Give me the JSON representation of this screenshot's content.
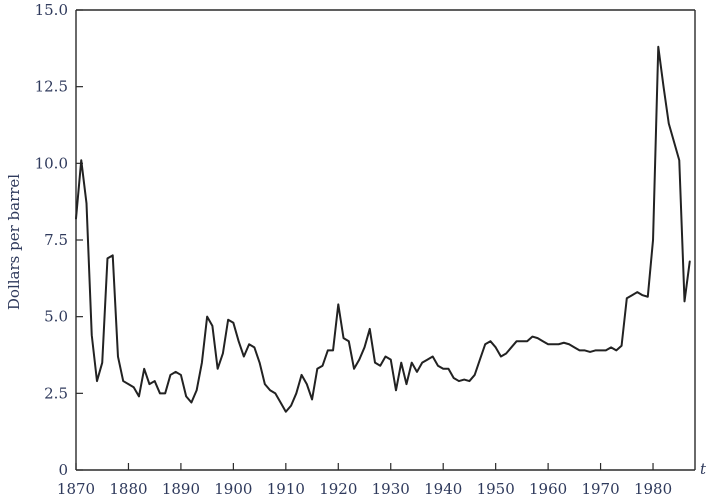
{
  "chart_data": {
    "type": "line",
    "title": "",
    "xlabel": "",
    "x_variable": "t",
    "ylabel": "Dollars per barrel",
    "xlim": [
      1870,
      1988
    ],
    "ylim": [
      0,
      15
    ],
    "grid": false,
    "x_ticks": [
      1870,
      1880,
      1890,
      1900,
      1910,
      1920,
      1930,
      1940,
      1950,
      1960,
      1970,
      1980
    ],
    "y_ticks": [
      0,
      2.5,
      5.0,
      7.5,
      10.0,
      12.5,
      15.0
    ],
    "x_tick_labels": [
      "1870",
      "1880",
      "1890",
      "1900",
      "1910",
      "1920",
      "1930",
      "1940",
      "1950",
      "1960",
      "1970",
      "1980"
    ],
    "y_tick_labels": [
      "0",
      "2.5",
      "5.0",
      "7.5",
      "10.0",
      "12.5",
      "15.0"
    ],
    "colors": {
      "line": "#222222",
      "axis": "#2a2a2a",
      "text": "#2f3a5c"
    },
    "series": [
      {
        "x": [
          1870,
          1871,
          1872,
          1873,
          1874,
          1875,
          1876,
          1877,
          1878,
          1879,
          1880,
          1881,
          1882,
          1883,
          1884,
          1885,
          1886,
          1887,
          1888,
          1889,
          1890,
          1891,
          1892,
          1893,
          1894,
          1895,
          1896,
          1897,
          1898,
          1899,
          1900,
          1901,
          1902,
          1903,
          1904,
          1905,
          1906,
          1907,
          1908,
          1909,
          1910,
          1911,
          1912,
          1913,
          1914,
          1915,
          1916,
          1917,
          1918,
          1919,
          1920,
          1921,
          1922,
          1923,
          1924,
          1925,
          1926,
          1927,
          1928,
          1929,
          1930,
          1931,
          1932,
          1933,
          1934,
          1935,
          1936,
          1937,
          1938,
          1939,
          1940,
          1941,
          1942,
          1943,
          1944,
          1945,
          1946,
          1947,
          1948,
          1949,
          1950,
          1951,
          1952,
          1953,
          1954,
          1955,
          1956,
          1957,
          1958,
          1959,
          1960,
          1961,
          1962,
          1963,
          1964,
          1965,
          1966,
          1967,
          1968,
          1969,
          1970,
          1971,
          1972,
          1973,
          1974,
          1975,
          1976,
          1977,
          1978,
          1979,
          1980,
          1981,
          1982,
          1983,
          1984,
          1985,
          1986,
          1987
        ],
        "values": [
          8.2,
          10.1,
          8.7,
          4.4,
          2.9,
          3.5,
          6.9,
          7.0,
          3.7,
          2.9,
          2.8,
          2.7,
          2.4,
          3.3,
          2.8,
          2.9,
          2.5,
          2.5,
          3.1,
          3.2,
          3.1,
          2.4,
          2.2,
          2.6,
          3.5,
          5.0,
          4.7,
          3.3,
          3.8,
          4.9,
          4.8,
          4.2,
          3.7,
          4.1,
          4.0,
          3.5,
          2.8,
          2.6,
          2.5,
          2.2,
          1.9,
          2.1,
          2.5,
          3.1,
          2.8,
          2.3,
          3.3,
          3.4,
          3.9,
          3.9,
          5.4,
          4.3,
          4.2,
          3.3,
          3.6,
          4.0,
          4.6,
          3.5,
          3.4,
          3.7,
          3.6,
          2.6,
          3.5,
          2.8,
          3.5,
          3.2,
          3.5,
          3.6,
          3.7,
          3.4,
          3.3,
          3.3,
          3.0,
          2.9,
          2.95,
          2.9,
          3.1,
          3.6,
          4.1,
          4.2,
          4.0,
          3.7,
          3.8,
          4.0,
          4.2,
          4.2,
          4.2,
          4.35,
          4.3,
          4.2,
          4.1,
          4.1,
          4.1,
          4.15,
          4.1,
          4.0,
          3.9,
          3.9,
          3.85,
          3.9,
          3.9,
          3.9,
          4.0,
          3.9,
          4.05,
          5.6,
          5.7,
          5.8,
          5.7,
          5.65,
          7.5,
          13.8,
          12.5,
          11.3,
          10.7,
          10.1,
          5.5,
          6.8
        ]
      }
    ]
  }
}
